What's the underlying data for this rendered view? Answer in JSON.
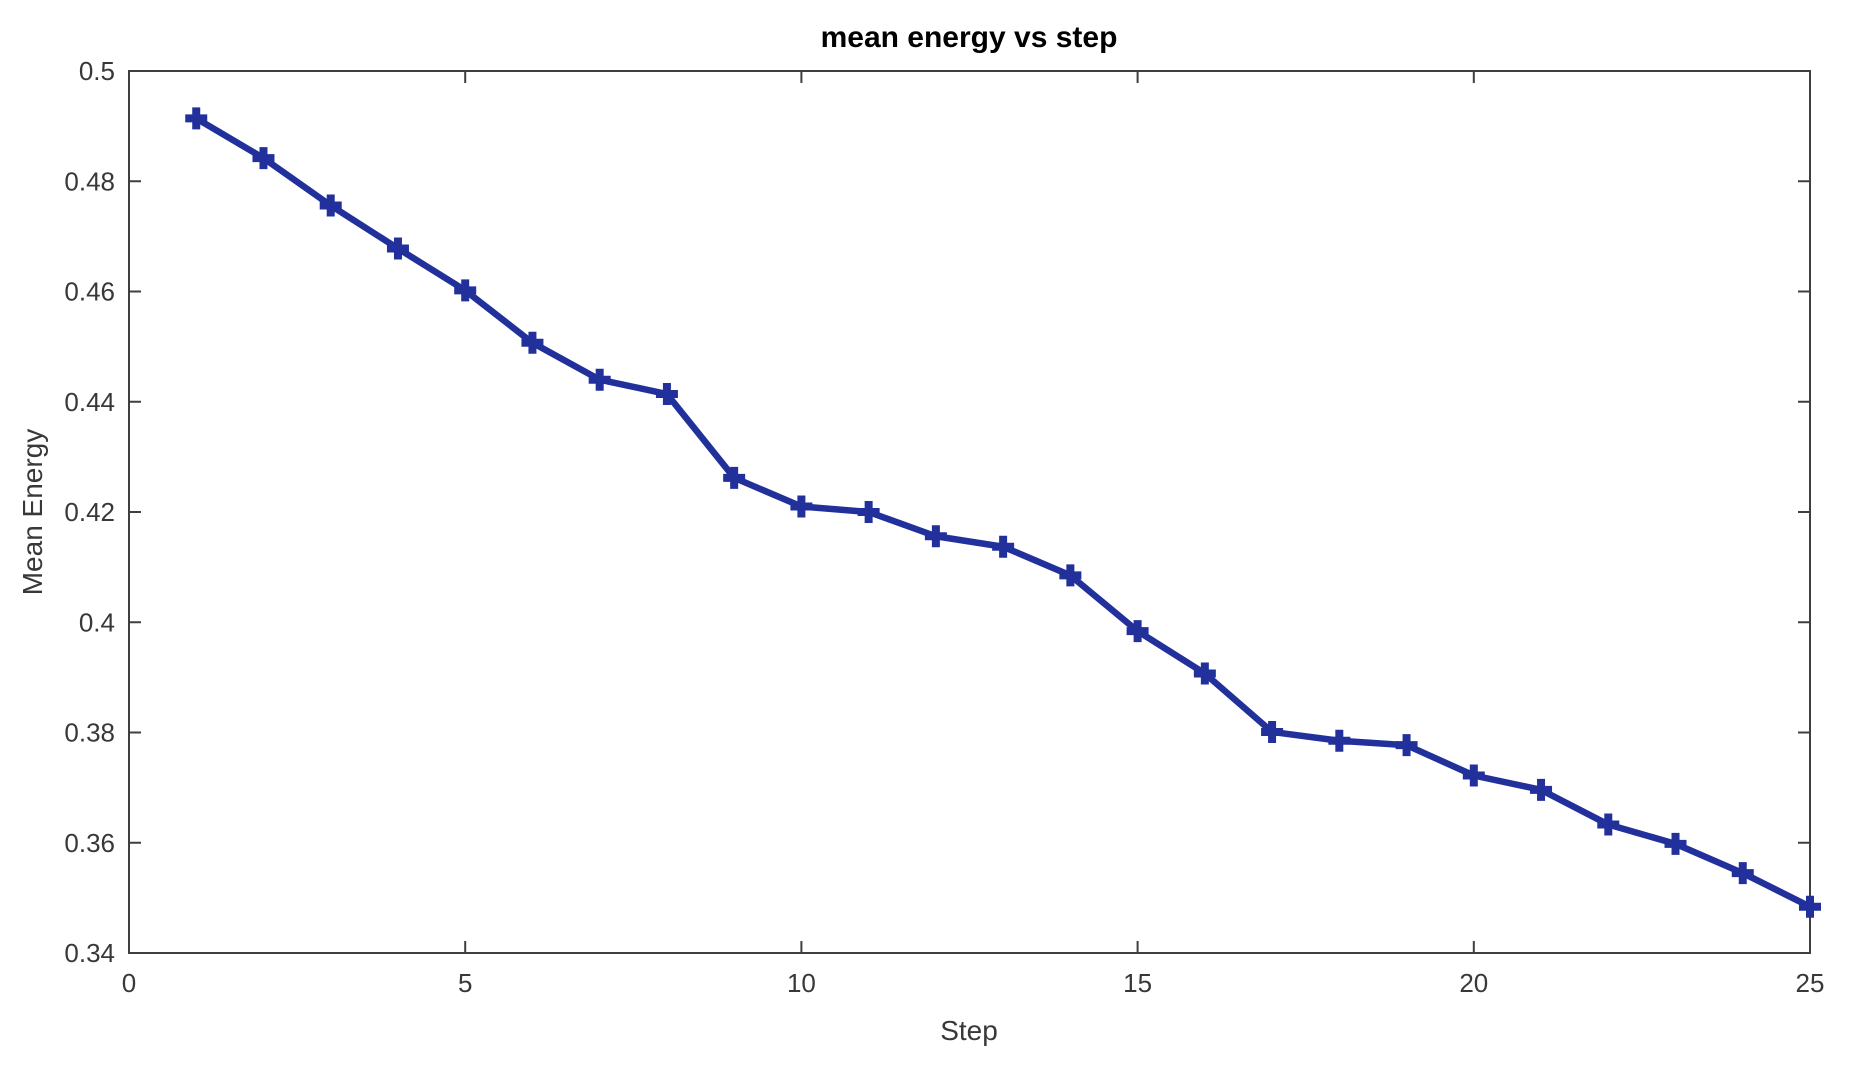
{
  "figure": {
    "background": "#ffffff"
  },
  "chart_data": {
    "type": "line",
    "title": "mean energy vs step",
    "xlabel": "Step",
    "ylabel": "Mean Energy",
    "x": [
      1,
      2,
      3,
      4,
      5,
      6,
      7,
      8,
      9,
      10,
      11,
      12,
      13,
      14,
      15,
      16,
      17,
      18,
      19,
      20,
      21,
      22,
      23,
      24,
      25
    ],
    "y": [
      0.4914,
      0.4842,
      0.4756,
      0.4678,
      0.4602,
      0.4507,
      0.444,
      0.4414,
      0.4262,
      0.421,
      0.42,
      0.4156,
      0.4137,
      0.4085,
      0.3984,
      0.3907,
      0.3801,
      0.3785,
      0.3777,
      0.3722,
      0.3696,
      0.3633,
      0.3598,
      0.3545,
      0.3484
    ],
    "xlim": [
      0,
      25
    ],
    "ylim": [
      0.34,
      0.5
    ],
    "x_ticks": [
      0,
      5,
      10,
      15,
      20,
      25
    ],
    "x_tick_labels": [
      "0",
      "5",
      "10",
      "15",
      "20",
      "25"
    ],
    "y_ticks": [
      0.34,
      0.36,
      0.38,
      0.4,
      0.42,
      0.44,
      0.46,
      0.48,
      0.5
    ],
    "y_tick_labels": [
      "0.34",
      "0.36",
      "0.38",
      "0.4",
      "0.42",
      "0.44",
      "0.46",
      "0.48",
      "0.5"
    ],
    "line_color": "#22309c",
    "axis_color": "#3f3f3f",
    "tick_label_color": "#383838",
    "marker": "plus",
    "grid": false,
    "legend_position": "none",
    "box": true
  }
}
